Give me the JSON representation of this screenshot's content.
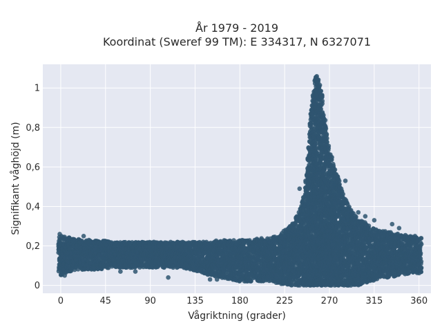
{
  "chart_data": {
    "type": "scatter",
    "title": "År 1979 - 2019",
    "subtitle": "Koordinat (Sweref 99 TM): E 334317, N 6327071",
    "xlabel": "Vågriktning (grader)",
    "ylabel": "Signifikant våghöjd (m)",
    "xlim": [
      -18,
      372
    ],
    "ylim": [
      -0.04,
      1.12
    ],
    "xticks": [
      0,
      45,
      90,
      135,
      180,
      225,
      270,
      315,
      360
    ],
    "xtick_labels": [
      "0",
      "45",
      "90",
      "135",
      "180",
      "225",
      "270",
      "315",
      "360"
    ],
    "yticks": [
      0,
      0.2,
      0.4,
      0.6,
      0.8,
      1
    ],
    "ytick_labels": [
      "0",
      "0,2",
      "0,4",
      "0,6",
      "0,8",
      "1"
    ],
    "grid": true,
    "marker_color": "#2f5570",
    "plot_background": "#e5e8f2",
    "series": [
      {
        "x": [
          0,
          5,
          10,
          15,
          20,
          30,
          40,
          50,
          60,
          70,
          80,
          90,
          100,
          110,
          120,
          130,
          140,
          150,
          160,
          170,
          180,
          190,
          200,
          210,
          220,
          225,
          230,
          235,
          240,
          245,
          248,
          250,
          252,
          254,
          255,
          256,
          257,
          258,
          259,
          260,
          261,
          262,
          263,
          264,
          265,
          266,
          268,
          270,
          272,
          275,
          278,
          280,
          283,
          286,
          290,
          295,
          300,
          305,
          310,
          315,
          320,
          330,
          340,
          350,
          360
        ],
        "y_min": [
          0.05,
          0.06,
          0.07,
          0.08,
          0.08,
          0.08,
          0.08,
          0.09,
          0.09,
          0.09,
          0.09,
          0.09,
          0.09,
          0.09,
          0.09,
          0.08,
          0.07,
          0.05,
          0.04,
          0.03,
          0.02,
          0.02,
          0.02,
          0.02,
          0.01,
          0.0,
          0.0,
          0.0,
          0.0,
          0.0,
          0.0,
          0.0,
          0.0,
          0.0,
          0.0,
          0.0,
          0.0,
          0.0,
          0.0,
          0.0,
          0.0,
          0.0,
          0.0,
          0.0,
          0.0,
          0.0,
          0.0,
          0.0,
          0.0,
          0.0,
          0.0,
          0.0,
          0.0,
          0.0,
          0.0,
          0.0,
          0.0,
          0.01,
          0.02,
          0.02,
          0.03,
          0.04,
          0.05,
          0.06,
          0.06
        ],
        "y_max": [
          0.25,
          0.25,
          0.24,
          0.24,
          0.23,
          0.23,
          0.23,
          0.22,
          0.22,
          0.22,
          0.22,
          0.22,
          0.22,
          0.22,
          0.22,
          0.22,
          0.22,
          0.22,
          0.23,
          0.23,
          0.23,
          0.23,
          0.24,
          0.24,
          0.26,
          0.28,
          0.3,
          0.33,
          0.38,
          0.47,
          0.6,
          0.78,
          0.92,
          0.98,
          1.05,
          1.08,
          1.06,
          1.04,
          1.05,
          1.03,
          1.02,
          0.99,
          0.95,
          0.9,
          0.85,
          0.82,
          0.75,
          0.7,
          0.66,
          0.6,
          0.56,
          0.52,
          0.47,
          0.44,
          0.4,
          0.36,
          0.33,
          0.32,
          0.3,
          0.29,
          0.28,
          0.27,
          0.26,
          0.25,
          0.24
        ],
        "outliers": [
          [
            -1,
            0.26
          ],
          [
            4,
            0.05
          ],
          [
            23,
            0.25
          ],
          [
            60,
            0.07
          ],
          [
            75,
            0.07
          ],
          [
            108,
            0.04
          ],
          [
            150,
            0.03
          ],
          [
            157,
            0.03
          ],
          [
            240,
            0.49
          ],
          [
            246,
            0.53
          ],
          [
            267,
            0.73
          ],
          [
            286,
            0.53
          ],
          [
            299,
            0.37
          ],
          [
            306,
            0.35
          ],
          [
            315,
            0.33
          ],
          [
            333,
            0.31
          ],
          [
            340,
            0.29
          ],
          [
            356,
            0.25
          ]
        ]
      }
    ]
  }
}
